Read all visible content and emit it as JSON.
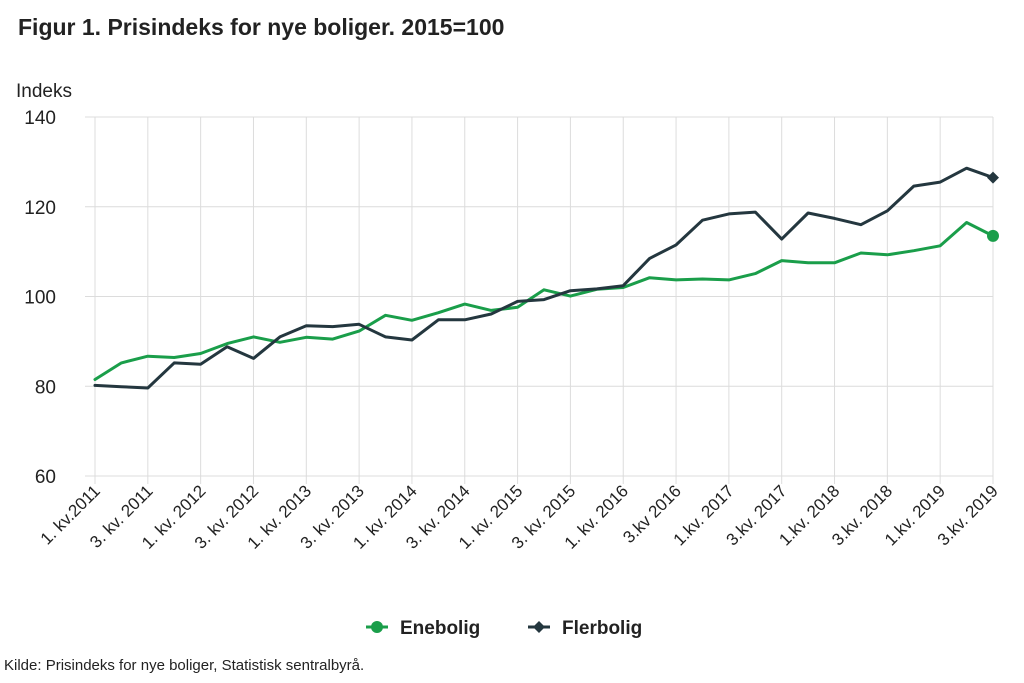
{
  "title": "Figur 1. Prisindeks for nye boliger. 2015=100",
  "source": "Kilde: Prisindeks for nye boliger, Statistisk sentralbyrå.",
  "colors": {
    "enebolig": "#1a9e4a",
    "flerbolig": "#24373f",
    "grid": "#dcdcdc"
  },
  "chart_data": {
    "type": "line",
    "title": "Figur 1. Prisindeks for nye boliger. 2015=100",
    "ylabel": "Indeks",
    "xlabel": "",
    "ylim": [
      60,
      140
    ],
    "yticks": [
      60,
      80,
      100,
      120,
      140
    ],
    "grid": true,
    "legend_position": "bottom",
    "x_tick_labels": [
      "1. kv.2011",
      "3. kv. 2011",
      "1. kv. 2012",
      "3. kv. 2012",
      "1. kv. 2013",
      "3. kv. 2013",
      "1. kv. 2014",
      "3. kv. 2014",
      "1. kv. 2015",
      "3. kv. 2015",
      "1. kv. 2016",
      "3.kv 2016",
      "1.kv. 2017",
      "3.kv. 2017",
      "1.kv. 2018",
      "3.kv. 2018",
      "1.kv. 2019",
      "3.kv. 2019"
    ],
    "categories": [
      "2011K1",
      "2011K2",
      "2011K3",
      "2011K4",
      "2012K1",
      "2012K2",
      "2012K3",
      "2012K4",
      "2013K1",
      "2013K2",
      "2013K3",
      "2013K4",
      "2014K1",
      "2014K2",
      "2014K3",
      "2014K4",
      "2015K1",
      "2015K2",
      "2015K3",
      "2015K4",
      "2016K1",
      "2016K2",
      "2016K3",
      "2016K4",
      "2017K1",
      "2017K2",
      "2017K3",
      "2017K4",
      "2018K1",
      "2018K2",
      "2018K3",
      "2018K4",
      "2019K1",
      "2019K2",
      "2019K3"
    ],
    "series": [
      {
        "name": "Enebolig",
        "marker": "circle",
        "values": [
          81.5,
          85.2,
          86.7,
          86.4,
          87.3,
          89.5,
          91.0,
          89.8,
          90.9,
          90.5,
          92.3,
          95.8,
          94.7,
          96.4,
          98.3,
          96.9,
          97.6,
          101.5,
          100.1,
          101.6,
          102.0,
          104.2,
          103.7,
          103.9,
          103.7,
          105.1,
          108.0,
          107.5,
          107.5,
          109.7,
          109.3,
          110.2,
          111.3,
          116.5,
          113.5
        ]
      },
      {
        "name": "Flerbolig",
        "marker": "diamond",
        "values": [
          80.2,
          79.9,
          79.6,
          85.2,
          84.9,
          88.8,
          86.2,
          91.0,
          93.5,
          93.3,
          93.8,
          91.0,
          90.3,
          94.8,
          94.8,
          96.1,
          98.9,
          99.3,
          101.3,
          101.7,
          102.4,
          108.5,
          111.5,
          117.0,
          118.4,
          118.8,
          112.8,
          118.6,
          117.4,
          116.0,
          119.1,
          124.6,
          125.5,
          128.6,
          126.5
        ]
      }
    ]
  }
}
